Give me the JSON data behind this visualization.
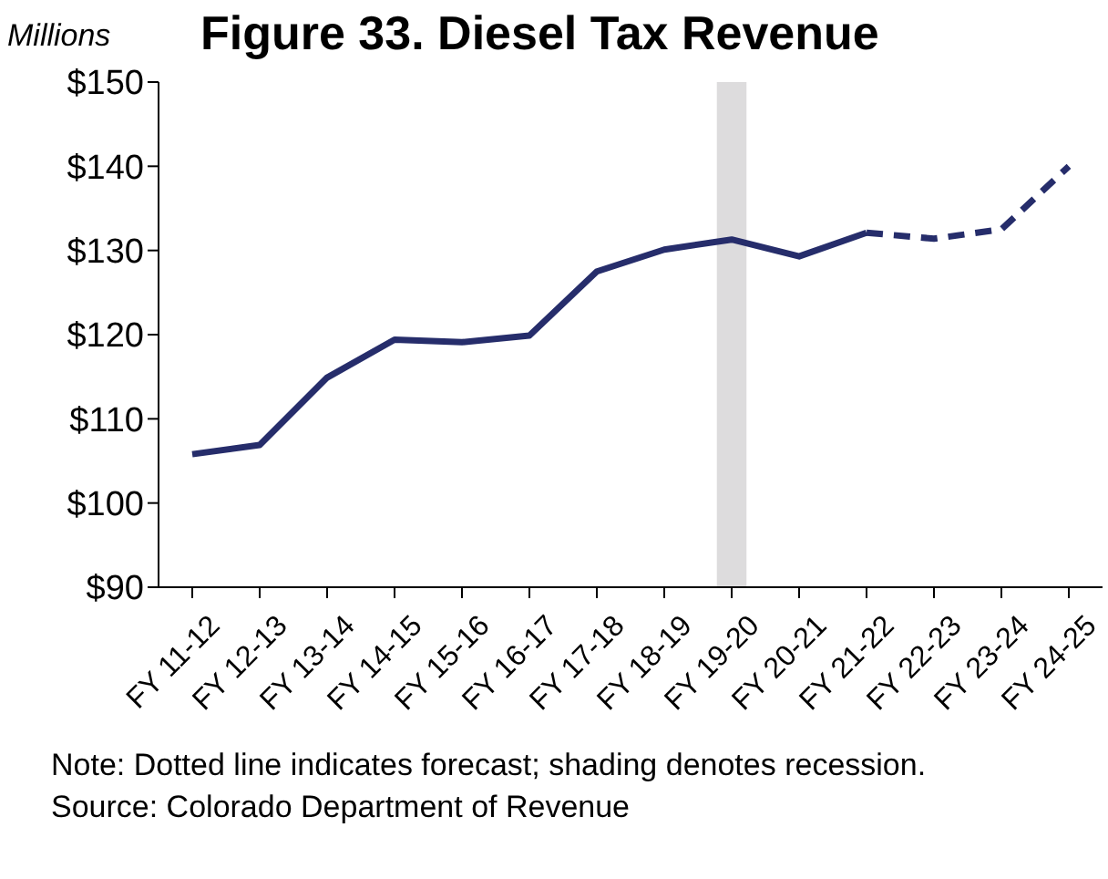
{
  "chart_data": {
    "type": "line",
    "title": "Figure 33. Diesel Tax Revenue",
    "ylabel": "Millions",
    "categories": [
      "FY 11-12",
      "FY 12-13",
      "FY 13-14",
      "FY 14-15",
      "FY 15-16",
      "FY 16-17",
      "FY 17-18",
      "FY 18-19",
      "FY 19-20",
      "FY 20-21",
      "FY 21-22",
      "FY 22-23",
      "FY 23-24",
      "FY 24-25"
    ],
    "series": [
      {
        "color": "#262d6b",
        "line_style": "solid",
        "values": [
          105.8,
          106.9,
          114.9,
          119.4,
          119.1,
          119.9,
          127.5,
          130.1,
          131.3,
          129.3,
          132.1,
          null,
          null,
          null
        ]
      },
      {
        "color": "#262d6b",
        "line_style": "dashed",
        "values": [
          null,
          null,
          null,
          null,
          null,
          null,
          null,
          null,
          null,
          null,
          132.1,
          131.4,
          132.5,
          140.0
        ]
      }
    ],
    "ylim": [
      90,
      150
    ],
    "yticks": [
      {
        "value": 90,
        "label": "$90"
      },
      {
        "value": 100,
        "label": "$100"
      },
      {
        "value": 110,
        "label": "$110"
      },
      {
        "value": 120,
        "label": "$120"
      },
      {
        "value": 130,
        "label": "$130"
      },
      {
        "value": 140,
        "label": "$140"
      },
      {
        "value": 150,
        "label": "$150"
      }
    ],
    "bands": [
      {
        "axis": "x",
        "from": "FY 19-20",
        "to": "FY 19-20",
        "color": "#dddcdd"
      }
    ],
    "grid": false,
    "legend": false,
    "marker": "none",
    "annotations": [
      "Note: Dotted line indicates forecast; shading denotes recession.",
      "Source: Colorado Department of Revenue"
    ]
  }
}
